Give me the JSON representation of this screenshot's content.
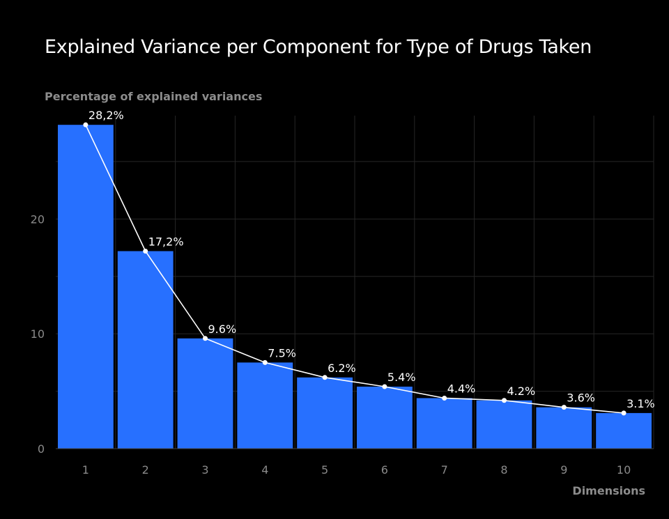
{
  "chart_data": {
    "type": "bar",
    "title": "Explained Variance per Component for Type of Drugs Taken",
    "ylabel": "Percentage of explained variances",
    "xlabel": "Dimensions",
    "categories": [
      "1",
      "2",
      "3",
      "4",
      "5",
      "6",
      "7",
      "8",
      "9",
      "10"
    ],
    "values": [
      28.2,
      17.2,
      9.6,
      7.5,
      6.2,
      5.4,
      4.4,
      4.2,
      3.6,
      3.1
    ],
    "data_labels": [
      "28,2%",
      "17,2%",
      "9.6%",
      "7.5%",
      "6.2%",
      "5.4%",
      "4.4%",
      "4.2%",
      "3.6%",
      "3.1%"
    ],
    "line_overlay": true,
    "yticks": [
      "0",
      "10",
      "20"
    ],
    "ylim": [
      0,
      29
    ],
    "grid": true,
    "colors": {
      "bar": "#2770ff",
      "line": "#ffffff",
      "grid": "#262626",
      "background": "#000000",
      "axis_text": "#8a8a8a"
    }
  }
}
